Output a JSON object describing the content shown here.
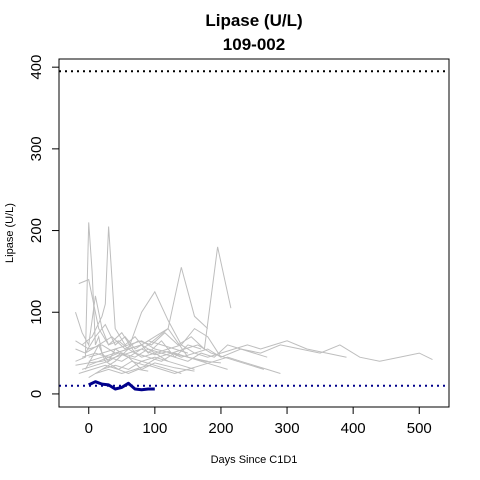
{
  "chart_data": {
    "type": "line",
    "title": "Lipase (U/L)",
    "subtitle": "109-002",
    "xlabel": "Days Since C1D1",
    "ylabel": "Lipase (U/L)",
    "xlim": [
      -45,
      545
    ],
    "ylim": [
      -16,
      410
    ],
    "xticks": [
      0,
      100,
      200,
      300,
      400,
      500
    ],
    "yticks": [
      0,
      100,
      200,
      300,
      400
    ],
    "grid": false,
    "reference_lines": [
      {
        "y": 395,
        "style": "dotted",
        "color": "#000000"
      },
      {
        "y": 10,
        "style": "dotted",
        "color": "#00008B"
      }
    ],
    "background_series_color": "#BEBEBE",
    "highlight_series_color": "#00008B",
    "background_series": [
      {
        "x": [
          -20,
          -5,
          0,
          5,
          10,
          15,
          20,
          30,
          40,
          60,
          80,
          100,
          130,
          160
        ],
        "y": [
          40,
          45,
          210,
          150,
          60,
          70,
          50,
          40,
          55,
          45,
          30,
          38,
          32,
          28
        ]
      },
      {
        "x": [
          -15,
          0,
          15,
          30,
          45,
          60,
          80,
          100,
          120,
          140,
          160,
          180,
          200
        ],
        "y": [
          135,
          140,
          80,
          60,
          65,
          55,
          100,
          125,
          90,
          60,
          80,
          70,
          45
        ]
      },
      {
        "x": [
          -10,
          5,
          20,
          25,
          30,
          40,
          55,
          70,
          90,
          110,
          130,
          150,
          170
        ],
        "y": [
          60,
          70,
          95,
          110,
          205,
          80,
          60,
          70,
          50,
          65,
          45,
          60,
          55
        ]
      },
      {
        "x": [
          -20,
          -10,
          0,
          10,
          20,
          30,
          50,
          70,
          90,
          120,
          150,
          180
        ],
        "y": [
          100,
          75,
          60,
          120,
          80,
          60,
          75,
          50,
          60,
          80,
          45,
          40
        ]
      },
      {
        "x": [
          -20,
          0,
          20,
          40,
          60,
          80,
          100,
          120,
          140,
          160,
          180,
          200,
          230,
          260,
          290,
          320,
          350,
          380,
          410,
          440,
          470,
          500,
          520
        ],
        "y": [
          35,
          38,
          40,
          45,
          50,
          55,
          48,
          52,
          45,
          50,
          55,
          45,
          55,
          50,
          60,
          55,
          50,
          60,
          45,
          40,
          45,
          50,
          42
        ]
      },
      {
        "x": [
          -10,
          10,
          30,
          50,
          70,
          90,
          110,
          130,
          150,
          170,
          190,
          210,
          230,
          250,
          270
        ],
        "y": [
          30,
          35,
          40,
          50,
          45,
          55,
          50,
          45,
          40,
          50,
          45,
          60,
          55,
          50,
          45
        ]
      },
      {
        "x": [
          0,
          20,
          40,
          60,
          80,
          100,
          120,
          140,
          160,
          180,
          200,
          220,
          240,
          260,
          280,
          300,
          330,
          360,
          390
        ],
        "y": [
          40,
          45,
          50,
          55,
          60,
          50,
          55,
          60,
          50,
          45,
          50,
          55,
          60,
          55,
          60,
          65,
          55,
          50,
          45
        ]
      },
      {
        "x": [
          -5,
          15,
          35,
          55,
          75,
          95,
          115,
          135,
          155,
          175,
          195,
          215
        ],
        "y": [
          50,
          60,
          70,
          55,
          65,
          60,
          75,
          60,
          70,
          55,
          180,
          105
        ]
      },
      {
        "x": [
          20,
          40,
          60,
          80,
          100,
          120,
          140,
          160,
          180
        ],
        "y": [
          30,
          40,
          55,
          60,
          70,
          80,
          155,
          95,
          80
        ]
      },
      {
        "x": [
          -15,
          5,
          25,
          45,
          65,
          85,
          105,
          125,
          145,
          165,
          185,
          205,
          225,
          245,
          265
        ],
        "y": [
          25,
          30,
          35,
          30,
          40,
          35,
          45,
          50,
          55,
          60,
          50,
          45,
          40,
          35,
          30
        ]
      },
      {
        "x": [
          0,
          10,
          20,
          40,
          60,
          80,
          100,
          120,
          140
        ],
        "y": [
          20,
          25,
          30,
          35,
          30,
          40,
          35,
          30,
          25
        ]
      },
      {
        "x": [
          -20,
          -5,
          10,
          25,
          40,
          55,
          70,
          90,
          110,
          130,
          150
        ],
        "y": [
          55,
          50,
          70,
          85,
          60,
          70,
          55,
          65,
          60,
          55,
          50
        ]
      },
      {
        "x": [
          -10,
          10,
          30,
          50,
          70,
          90,
          110,
          130,
          150,
          170,
          190,
          210
        ],
        "y": [
          45,
          50,
          45,
          40,
          50,
          45,
          40,
          50,
          45,
          40,
          35,
          30
        ]
      },
      {
        "x": [
          0,
          15,
          30,
          45,
          60,
          80,
          100,
          120,
          140,
          160
        ],
        "y": [
          35,
          40,
          45,
          50,
          45,
          40,
          45,
          40,
          35,
          30
        ]
      },
      {
        "x": [
          -20,
          0,
          20,
          40,
          60,
          80,
          100,
          120
        ],
        "y": [
          65,
          55,
          60,
          50,
          55,
          45,
          50,
          40
        ]
      },
      {
        "x": [
          10,
          30,
          50,
          70,
          90,
          110,
          130,
          150,
          170,
          190,
          210,
          230,
          250,
          270,
          290
        ],
        "y": [
          25,
          30,
          25,
          30,
          35,
          30,
          25,
          30,
          35,
          40,
          45,
          40,
          35,
          30,
          25
        ]
      },
      {
        "x": [
          -5,
          5,
          15,
          25,
          35,
          45,
          60,
          75,
          90
        ],
        "y": [
          30,
          45,
          60,
          40,
          35,
          30,
          25,
          30,
          28
        ]
      },
      {
        "x": [
          0,
          20,
          40,
          60,
          80,
          100,
          125,
          150,
          175,
          200
        ],
        "y": [
          45,
          50,
          55,
          60,
          65,
          55,
          50,
          45,
          40,
          38
        ]
      }
    ],
    "highlight_series": {
      "x": [
        0,
        10,
        20,
        30,
        40,
        50,
        60,
        70,
        80,
        90,
        100
      ],
      "y": [
        11,
        15,
        12,
        11,
        6,
        8,
        13,
        6,
        5,
        6,
        6
      ]
    }
  }
}
